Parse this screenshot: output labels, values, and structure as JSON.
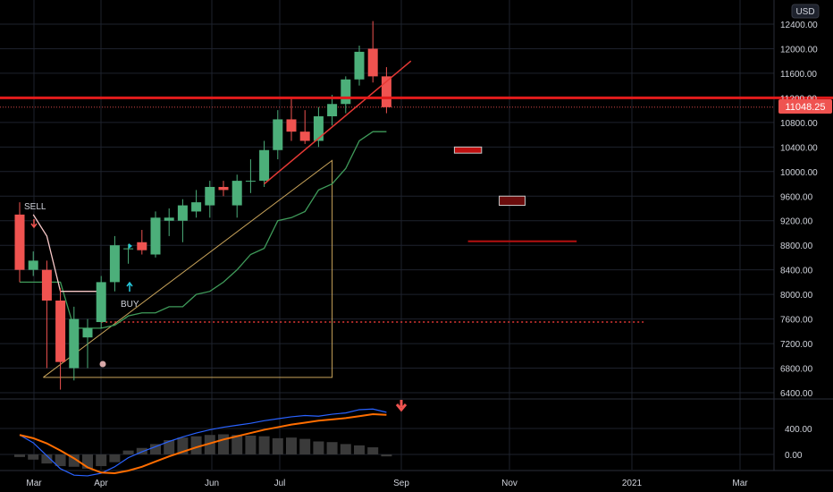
{
  "currency": "USD",
  "colors": {
    "background": "#000000",
    "grid": "#1e222d",
    "up": "#26a69a",
    "up_body": "#4caf7a",
    "down": "#ef5350",
    "trendline": "#e53935",
    "resistance": "#e31b1b",
    "wedge": "#c8a35a",
    "green_line": "#3f9b5a",
    "pink_line": "#f8c8c8",
    "macd": "#2962ff",
    "signal": "#ff6d00",
    "hist": "#3a3a3a",
    "dotted_red": "#e53935"
  },
  "last_price": "11048.25",
  "annotations": {
    "sell": "SELL",
    "buy": "BUY"
  },
  "chart_data": [
    {
      "type": "candlestick",
      "title": "",
      "y_ticks": [
        "12400.00",
        "12000.00",
        "11600.00",
        "11200.00",
        "10800.00",
        "10400.00",
        "10000.00",
        "9600.00",
        "9200.00",
        "8800.00",
        "8400.00",
        "8000.00",
        "7600.00",
        "7200.00",
        "6800.00",
        "6400.00"
      ],
      "x_ticks": [
        "Mar",
        "Apr",
        "Jun",
        "Jul",
        "Sep",
        "Nov",
        "2021",
        "Mar"
      ],
      "ylim": [
        6300,
        12700
      ],
      "candles": [
        {
          "t": 0,
          "o": 9300,
          "h": 9500,
          "l": 8200,
          "c": 8400
        },
        {
          "t": 1,
          "o": 8400,
          "h": 8700,
          "l": 8300,
          "c": 8550
        },
        {
          "t": 2,
          "o": 8400,
          "h": 8550,
          "l": 6800,
          "c": 7900
        },
        {
          "t": 3,
          "o": 7900,
          "h": 8100,
          "l": 6450,
          "c": 6900
        },
        {
          "t": 4,
          "o": 6800,
          "h": 7800,
          "l": 6600,
          "c": 7600
        },
        {
          "t": 5,
          "o": 7300,
          "h": 7600,
          "l": 6800,
          "c": 7450
        },
        {
          "t": 6,
          "o": 7550,
          "h": 8300,
          "l": 7450,
          "c": 8200
        },
        {
          "t": 7,
          "o": 8200,
          "h": 8950,
          "l": 8050,
          "c": 8800
        },
        {
          "t": 8,
          "o": 8750,
          "h": 8820,
          "l": 8500,
          "c": 8750
        },
        {
          "t": 9,
          "o": 8850,
          "h": 9050,
          "l": 8650,
          "c": 8720
        },
        {
          "t": 10,
          "o": 8650,
          "h": 9350,
          "l": 8600,
          "c": 9250
        },
        {
          "t": 11,
          "o": 9200,
          "h": 9400,
          "l": 8950,
          "c": 9250
        },
        {
          "t": 12,
          "o": 9200,
          "h": 9550,
          "l": 8850,
          "c": 9450
        },
        {
          "t": 13,
          "o": 9350,
          "h": 9700,
          "l": 9250,
          "c": 9500
        },
        {
          "t": 14,
          "o": 9450,
          "h": 9850,
          "l": 9250,
          "c": 9750
        },
        {
          "t": 15,
          "o": 9750,
          "h": 9850,
          "l": 9600,
          "c": 9700
        },
        {
          "t": 16,
          "o": 9450,
          "h": 9950,
          "l": 9250,
          "c": 9850
        },
        {
          "t": 17,
          "o": 9850,
          "h": 10200,
          "l": 9650,
          "c": 9850
        },
        {
          "t": 18,
          "o": 9850,
          "h": 10500,
          "l": 9750,
          "c": 10350
        },
        {
          "t": 19,
          "o": 10350,
          "h": 11000,
          "l": 10200,
          "c": 10850
        },
        {
          "t": 20,
          "o": 10850,
          "h": 11200,
          "l": 10500,
          "c": 10650
        },
        {
          "t": 21,
          "o": 10650,
          "h": 11000,
          "l": 10450,
          "c": 10500
        },
        {
          "t": 22,
          "o": 10500,
          "h": 11050,
          "l": 10400,
          "c": 10900
        },
        {
          "t": 23,
          "o": 10900,
          "h": 11250,
          "l": 10750,
          "c": 11100
        },
        {
          "t": 24,
          "o": 11100,
          "h": 11550,
          "l": 10950,
          "c": 11500
        },
        {
          "t": 25,
          "o": 11500,
          "h": 12050,
          "l": 11400,
          "c": 11950
        },
        {
          "t": 26,
          "o": 12000,
          "h": 12450,
          "l": 11450,
          "c": 11550
        },
        {
          "t": 27,
          "o": 11550,
          "h": 11700,
          "l": 10950,
          "c": 11048
        }
      ],
      "overlays": {
        "resistance_price": 11200,
        "trendline": [
          {
            "t": 18,
            "y": 9800
          },
          {
            "t": 28.8,
            "y": 11800
          }
        ],
        "dotted_price": 7550,
        "green_stop": [
          8200,
          8200,
          8200,
          8200,
          7450,
          7450,
          7450,
          7500,
          7650,
          7700,
          7700,
          7800,
          7800,
          8000,
          8050,
          8200,
          8400,
          8650,
          8750,
          9200,
          9250,
          9350,
          9700,
          9800,
          10050,
          10500,
          10650,
          10650
        ],
        "pink_stop": [
          9300,
          8950,
          8050,
          8050,
          8050,
          8050
        ],
        "wedge": [
          {
            "t": 2,
            "y": 6650
          },
          {
            "t": 23,
            "y": 10400
          },
          {
            "t": 23,
            "y": 6650
          }
        ],
        "zones": [
          {
            "t0": 32,
            "t1": 34,
            "y0": 10300,
            "y1": 10400
          },
          {
            "t0": 35.3,
            "t1": 37.2,
            "y0": 9450,
            "y1": 9600
          },
          {
            "t0": 33,
            "t1": 41,
            "y0": 8850,
            "y1": 8880
          }
        ]
      }
    },
    {
      "type": "macd",
      "y_ticks": [
        "400.00",
        "0.00"
      ],
      "histogram": [
        -40,
        -80,
        -140,
        -180,
        -190,
        -220,
        -180,
        -120,
        60,
        100,
        160,
        220,
        260,
        280,
        300,
        310,
        300,
        290,
        280,
        250,
        260,
        240,
        200,
        190,
        160,
        140,
        110,
        -30
      ],
      "macd": [
        300,
        180,
        -20,
        -220,
        -320,
        -330,
        -290,
        -190,
        -50,
        40,
        120,
        200,
        270,
        330,
        380,
        420,
        450,
        480,
        520,
        550,
        580,
        600,
        590,
        620,
        640,
        690,
        700,
        650
      ],
      "signal": [
        300,
        250,
        170,
        60,
        -60,
        -200,
        -280,
        -290,
        -250,
        -190,
        -110,
        -30,
        40,
        110,
        170,
        230,
        280,
        330,
        380,
        420,
        460,
        490,
        520,
        540,
        560,
        590,
        620,
        610
      ]
    }
  ]
}
